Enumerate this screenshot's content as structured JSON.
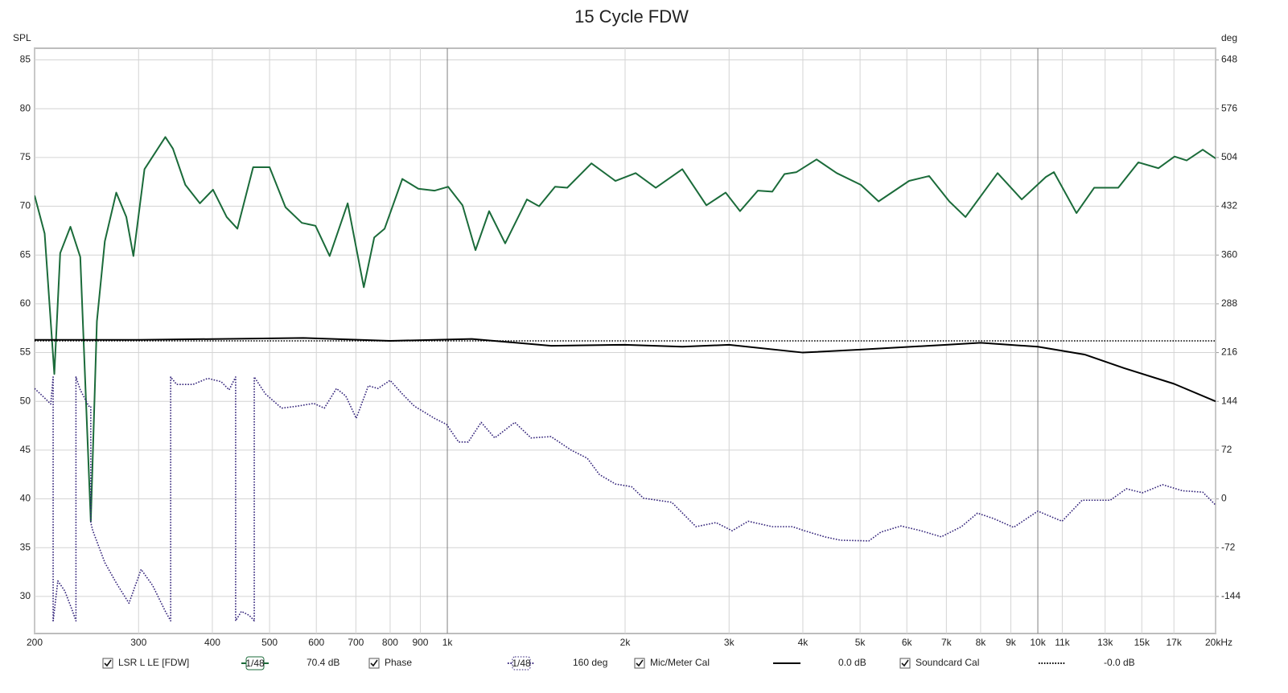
{
  "chart_data": {
    "type": "line",
    "title": "15 Cycle FDW",
    "y_label": "SPL",
    "y2_label": "deg",
    "xscale": "log",
    "grid": true,
    "xlim": [
      200,
      20000
    ],
    "ylim": [
      26.2,
      86.2
    ],
    "y2lim": [
      -198.7,
      665.3
    ],
    "xticks": [
      200,
      300,
      400,
      500,
      600,
      700,
      800,
      900,
      {
        "value": 1000,
        "label": "1k"
      },
      {
        "value": 2000,
        "label": "2k"
      },
      {
        "value": 3000,
        "label": "3k"
      },
      {
        "value": 4000,
        "label": "4k"
      },
      {
        "value": 5000,
        "label": "5k"
      },
      {
        "value": 6000,
        "label": "6k"
      },
      {
        "value": 7000,
        "label": "7k"
      },
      {
        "value": 8000,
        "label": "8k"
      },
      {
        "value": 9000,
        "label": "9k"
      },
      {
        "value": 10000,
        "label": "10k"
      },
      {
        "value": 20000,
        "label": "20kHz"
      }
    ],
    "xticks_secondary": [
      {
        "value": 11000,
        "label": "11k"
      },
      {
        "value": 13000,
        "label": "13k"
      },
      {
        "value": 15000,
        "label": "15k"
      },
      {
        "value": 17000,
        "label": "17k"
      }
    ],
    "yticks": [
      30,
      35,
      40,
      45,
      50,
      55,
      60,
      65,
      70,
      75,
      80,
      85
    ],
    "y2ticks": [
      -144,
      -72,
      0,
      72,
      144,
      216,
      288,
      360,
      432,
      504,
      576,
      648
    ],
    "series": [
      {
        "name": "LSR L LE [FDW]",
        "color": "#1b6b3a",
        "dash": "solid",
        "smoothing": "1/48",
        "readout": "70.4 dB",
        "x": [
          200,
          208,
          216,
          221,
          230,
          239,
          249,
          255,
          263,
          275,
          286,
          294,
          307,
          333,
          343,
          360,
          381,
          401,
          423,
          441,
          469,
          500,
          532,
          567,
          598,
          632,
          678,
          722,
          752,
          783,
          839,
          893,
          951,
          1003,
          1061,
          1116,
          1177,
          1253,
          1364,
          1430,
          1522,
          1596,
          1754,
          1926,
          2084,
          2254,
          2500,
          2746,
          2960,
          3131,
          3356,
          3551,
          3723,
          3902,
          4220,
          4565,
          5014,
          5374,
          6053,
          6546,
          7080,
          7542,
          8548,
          9392,
          10318,
          10646,
          11626,
          12457,
          13683,
          14797,
          16007,
          17041,
          17865,
          19022,
          20000
        ],
        "values": [
          71.1,
          67.2,
          52.8,
          65.2,
          67.9,
          64.8,
          37.7,
          58.2,
          66.4,
          71.4,
          68.9,
          64.9,
          73.8,
          77.1,
          75.9,
          72.2,
          70.3,
          71.7,
          68.9,
          67.7,
          74.0,
          74.0,
          69.9,
          68.3,
          68.0,
          64.9,
          70.3,
          61.7,
          66.8,
          67.7,
          72.8,
          71.8,
          71.6,
          72.0,
          70.1,
          65.5,
          69.5,
          66.2,
          70.7,
          70.0,
          72.0,
          71.9,
          74.4,
          72.6,
          73.4,
          71.9,
          73.8,
          70.1,
          71.4,
          69.5,
          71.6,
          71.5,
          73.3,
          73.5,
          74.8,
          73.4,
          72.2,
          70.5,
          72.6,
          73.1,
          70.5,
          68.9,
          73.4,
          70.7,
          73.0,
          73.5,
          69.3,
          71.9,
          71.9,
          74.5,
          73.9,
          75.1,
          74.7,
          75.8,
          74.9
        ]
      },
      {
        "name": "Phase",
        "color": "#33237a",
        "dash": "dotted",
        "axis": "y2",
        "smoothing": "1/48",
        "readout": "160 deg",
        "x": [
          200,
          208,
          213,
          215,
          215,
          219,
          225,
          232,
          235,
          235,
          239,
          247,
          249,
          249,
          251,
          263,
          275,
          289,
          303,
          317,
          333,
          340,
          340,
          348,
          371,
          393,
          414,
          427,
          438,
          438,
          448,
          462,
          471,
          471,
          492,
          524,
          558,
          594,
          619,
          649,
          673,
          701,
          735,
          763,
          800,
          839,
          879,
          951,
          997,
          1045,
          1085,
          1141,
          1203,
          1301,
          1386,
          1498,
          1621,
          1726,
          1809,
          1926,
          2051,
          2149,
          2399,
          2637,
          2851,
          3036,
          3232,
          3551,
          3841,
          4026,
          4355,
          4636,
          5174,
          5422,
          5866,
          6343,
          6860,
          7423,
          7903,
          8414,
          9099,
          10000,
          10988,
          11882,
          13262,
          14124,
          15031,
          16265,
          17586,
          19022,
          20000
        ],
        "values": [
          163,
          149,
          140,
          180,
          -180,
          -121,
          -136,
          -166,
          -180,
          180,
          161,
          137,
          137,
          -35,
          -47,
          -94,
          -124,
          -154,
          -104,
          -128,
          -166,
          -180,
          180,
          169,
          169,
          178,
          173,
          161,
          180,
          -180,
          -166,
          -172,
          -180,
          180,
          155,
          134,
          137,
          141,
          134,
          163,
          152,
          119,
          167,
          163,
          175,
          155,
          137,
          119,
          110,
          84,
          84,
          113,
          90,
          113,
          90,
          92,
          72,
          60,
          36,
          22,
          18,
          1,
          -5,
          -41,
          -35,
          -47,
          -33,
          -41,
          -41,
          -47,
          -56,
          -61,
          -62,
          -49,
          -40,
          -47,
          -56,
          -41,
          -21,
          -29,
          -42,
          -18,
          -33,
          -2,
          -2,
          15,
          9,
          21,
          12,
          10,
          -9
        ]
      },
      {
        "name": "Mic/Meter Cal",
        "color": "#000000",
        "dash": "solid",
        "readout": "0.0 dB",
        "x": [
          200,
          300,
          570,
          800,
          1100,
          1500,
          2000,
          2500,
          3000,
          4000,
          5000,
          7000,
          8000,
          10000,
          12000,
          14000,
          17000,
          20000
        ],
        "values": [
          56.3,
          56.3,
          56.5,
          56.2,
          56.4,
          55.7,
          55.8,
          55.6,
          55.8,
          55.0,
          55.3,
          55.8,
          56.0,
          55.6,
          54.8,
          53.4,
          51.8,
          50.0
        ]
      },
      {
        "name": "Soundcard Cal",
        "color": "#000000",
        "dash": "dotted",
        "readout": "-0.0 dB",
        "x": [
          200,
          20000
        ],
        "values": [
          56.2,
          56.2
        ]
      }
    ]
  }
}
